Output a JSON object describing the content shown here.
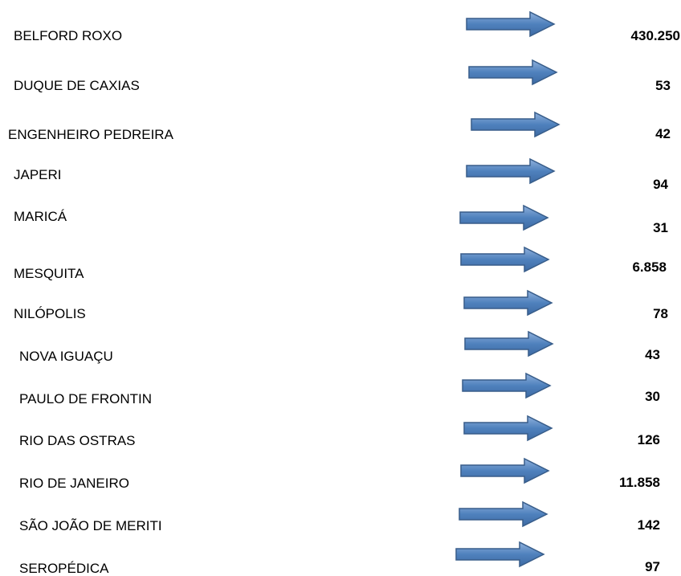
{
  "rows": [
    {
      "name": "BELFORD ROXO",
      "value": "430.250"
    },
    {
      "name": "DUQUE DE CAXIAS",
      "value": "53"
    },
    {
      "name": "ENGENHEIRO PEDREIRA",
      "value": "42"
    },
    {
      "name": "JAPERI",
      "value": "94"
    },
    {
      "name": "MARICÁ",
      "value": "31"
    },
    {
      "name": "MESQUITA",
      "value": "6.858"
    },
    {
      "name": "NILÓPOLIS",
      "value": "78"
    },
    {
      "name": "NOVA IGUAÇU",
      "value": "43"
    },
    {
      "name": "PAULO DE FRONTIN",
      "value": "30"
    },
    {
      "name": "RIO DAS OSTRAS",
      "value": "126"
    },
    {
      "name": "RIO DE JANEIRO",
      "value": "11.858"
    },
    {
      "name": "SÃO JOÃO DE MERITI",
      "value": "142"
    },
    {
      "name": "SEROPÉDICA",
      "value": "97"
    }
  ]
}
